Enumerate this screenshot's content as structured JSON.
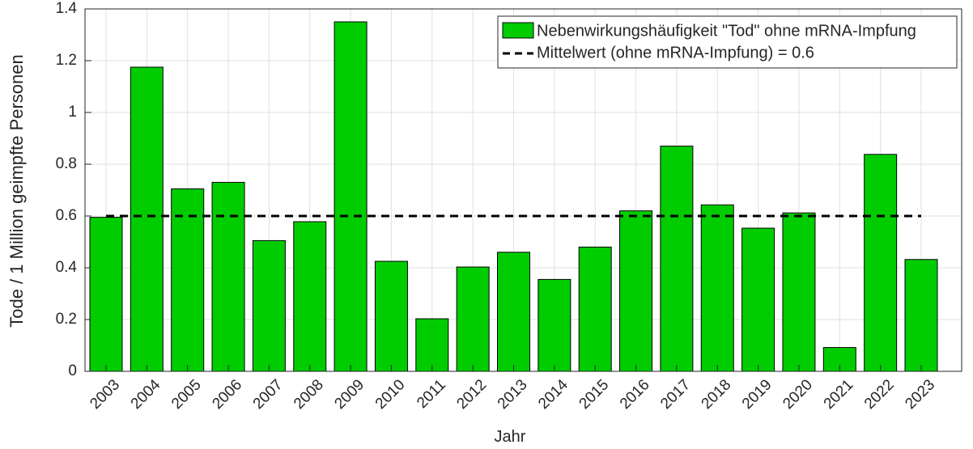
{
  "chart_data": {
    "type": "bar",
    "xlabel": "Jahr",
    "ylabel": "Tode / 1 Million geimpfte Personen",
    "categories": [
      "2003",
      "2004",
      "2005",
      "2006",
      "2007",
      "2008",
      "2009",
      "2010",
      "2011",
      "2012",
      "2013",
      "2014",
      "2015",
      "2016",
      "2017",
      "2018",
      "2019",
      "2020",
      "2021",
      "2022",
      "2023"
    ],
    "series": [
      {
        "name": "Nebenwirkungshäufigkeit \"Tod\" ohne mRNA-Impfung",
        "color": "#00cc00",
        "values": [
          0.595,
          1.175,
          0.705,
          0.73,
          0.505,
          0.578,
          1.35,
          0.425,
          0.203,
          0.403,
          0.46,
          0.355,
          0.48,
          0.62,
          0.87,
          0.643,
          0.553,
          0.612,
          0.092,
          0.838,
          0.432
        ]
      }
    ],
    "mean_line": {
      "name": "Mittelwert (ohne mRNA-Impfung) = 0.6",
      "value": 0.6,
      "color": "#000000"
    },
    "ylim": [
      0,
      1.4
    ],
    "yticks": [
      0,
      0.2,
      0.4,
      0.6,
      0.8,
      1,
      1.2,
      1.4
    ],
    "grid": true,
    "legend": "upper right"
  }
}
